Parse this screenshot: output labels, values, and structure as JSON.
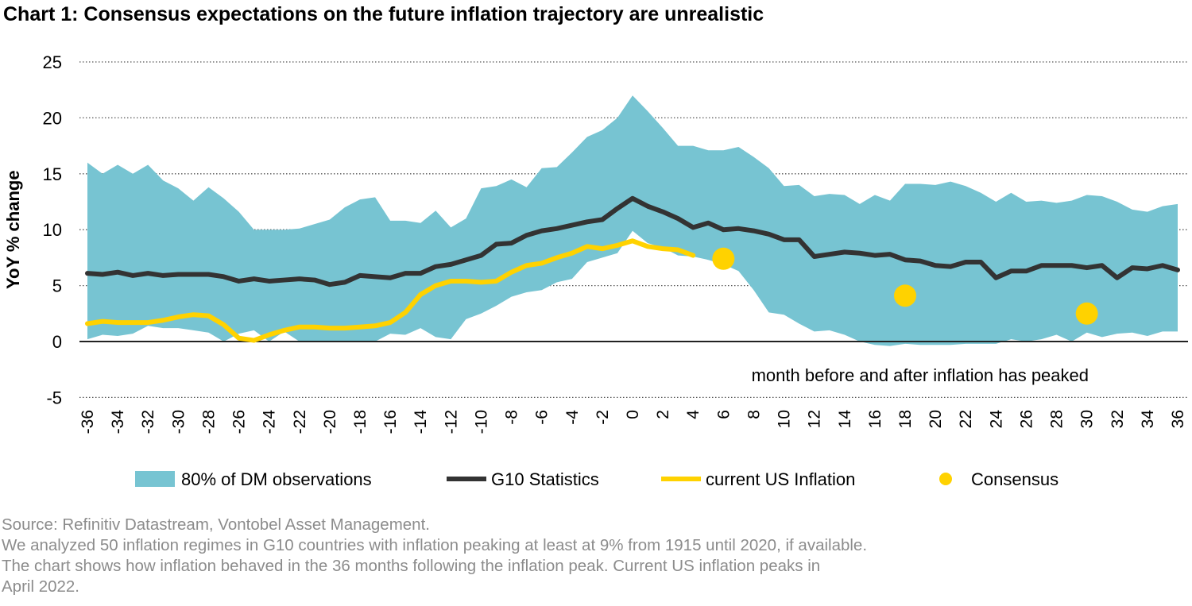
{
  "chart_data": {
    "type": "area",
    "title": "Chart 1: Consensus expectations on the future inflation trajectory are unrealistic",
    "xlabel": "month before and after inflation has peaked",
    "ylabel": "YoY % change",
    "xlim": [
      -36,
      36
    ],
    "ylim": [
      -5,
      25
    ],
    "yticks": [
      -5,
      0,
      5,
      10,
      15,
      20,
      25
    ],
    "xticks": [
      -36,
      -34,
      -32,
      -30,
      -28,
      -26,
      -24,
      -22,
      -20,
      -18,
      -16,
      -14,
      -12,
      -10,
      -8,
      -6,
      -4,
      -2,
      0,
      2,
      4,
      6,
      8,
      10,
      12,
      14,
      16,
      18,
      20,
      22,
      24,
      26,
      28,
      30,
      32,
      34,
      36
    ],
    "grid": "horizontal dotted",
    "legend_placement": "bottom",
    "x_start": -36,
    "band": {
      "name": "80% of DM observations",
      "color": "#77c4d2",
      "upper": [
        16,
        15,
        15.8,
        15,
        15.8,
        14.4,
        13.7,
        12.6,
        13.8,
        12.8,
        11.6,
        10,
        10,
        10,
        10.1,
        10.5,
        10.9,
        12,
        12.7,
        12.9,
        10.8,
        10.8,
        10.6,
        11.7,
        10.2,
        11,
        13.7,
        13.9,
        14.5,
        13.8,
        15.5,
        15.6,
        16.9,
        18.3,
        18.9,
        20,
        22,
        20.6,
        19.1,
        17.5,
        17.5,
        17.1,
        17.1,
        17.4,
        16.5,
        15.5,
        13.9,
        14,
        13,
        13.2,
        13.1,
        12.3,
        13.1,
        12.6,
        14.1,
        14.1,
        14,
        14.3,
        13.9,
        13.3,
        12.5,
        13.3,
        12.5,
        12.6,
        12.4,
        12.6,
        13.1,
        13,
        12.5,
        11.8,
        11.6,
        12.1,
        12.3
      ],
      "lower": [
        0.2,
        0.6,
        0.5,
        0.7,
        1.4,
        1.2,
        1.2,
        1,
        0.8,
        0,
        0.7,
        1,
        0,
        0.9,
        0,
        0,
        0,
        0,
        0,
        0,
        0.7,
        0.6,
        1.2,
        0.4,
        0.2,
        2,
        2.5,
        3.2,
        4,
        4.4,
        4.6,
        5.3,
        5.6,
        7.1,
        7.5,
        7.9,
        9.9,
        8.8,
        8.4,
        7.7,
        7.6,
        7.3,
        6.9,
        6.3,
        4.6,
        2.6,
        2.4,
        1.6,
        0.9,
        1,
        0.6,
        0,
        -0.3,
        -0.4,
        -0.2,
        -0.3,
        -0.3,
        -0.3,
        -0.2,
        -0.2,
        -0.2,
        0.2,
        0,
        0.2,
        0.6,
        0,
        0.8,
        0.4,
        0.7,
        0.8,
        0.5,
        0.9,
        0.9
      ]
    },
    "series": [
      {
        "name": "G10 Statistics",
        "color": "#333333",
        "values": [
          6.1,
          6,
          6.2,
          5.9,
          6.1,
          5.9,
          6,
          6,
          6,
          5.8,
          5.4,
          5.6,
          5.4,
          5.5,
          5.6,
          5.5,
          5.1,
          5.3,
          5.9,
          5.8,
          5.7,
          6.1,
          6.1,
          6.7,
          6.9,
          7.3,
          7.7,
          8.7,
          8.8,
          9.5,
          9.9,
          10.1,
          10.4,
          10.7,
          10.9,
          11.9,
          12.8,
          12.1,
          11.6,
          11,
          10.2,
          10.6,
          10,
          10.1,
          9.9,
          9.6,
          9.1,
          9.1,
          7.6,
          7.8,
          8,
          7.9,
          7.7,
          7.8,
          7.3,
          7.2,
          6.8,
          6.7,
          7.1,
          7.1,
          5.7,
          6.3,
          6.3,
          6.8,
          6.8,
          6.8,
          6.6,
          6.8,
          5.7,
          6.6,
          6.5,
          6.8,
          6.4
        ]
      },
      {
        "name": "current US Inflation",
        "color": "#ffd200",
        "values": [
          1.6,
          1.8,
          1.7,
          1.7,
          1.7,
          1.9,
          2.2,
          2.4,
          2.3,
          1.5,
          0.3,
          0.1,
          0.6,
          1,
          1.3,
          1.3,
          1.2,
          1.2,
          1.3,
          1.4,
          1.7,
          2.6,
          4.2,
          5,
          5.4,
          5.4,
          5.3,
          5.4,
          6.2,
          6.8,
          7,
          7.5,
          7.9,
          8.5,
          8.3,
          8.6,
          9,
          8.5,
          8.3,
          8.2,
          7.7
        ]
      }
    ],
    "points": {
      "name": "Consensus",
      "color": "#ffd200",
      "x": [
        6,
        18,
        30
      ],
      "y": [
        7.4,
        4.1,
        2.5
      ]
    }
  },
  "notes": [
    "Source: Refinitiv Datastream, Vontobel Asset Management.",
    "We analyzed 50 inflation regimes in G10 countries with inflation peaking at least at 9% from 1915 until 2020, if available.",
    "The chart shows how inflation behaved in the 36 months following the inflation peak. Current US inflation peaks in",
    "April 2022."
  ]
}
